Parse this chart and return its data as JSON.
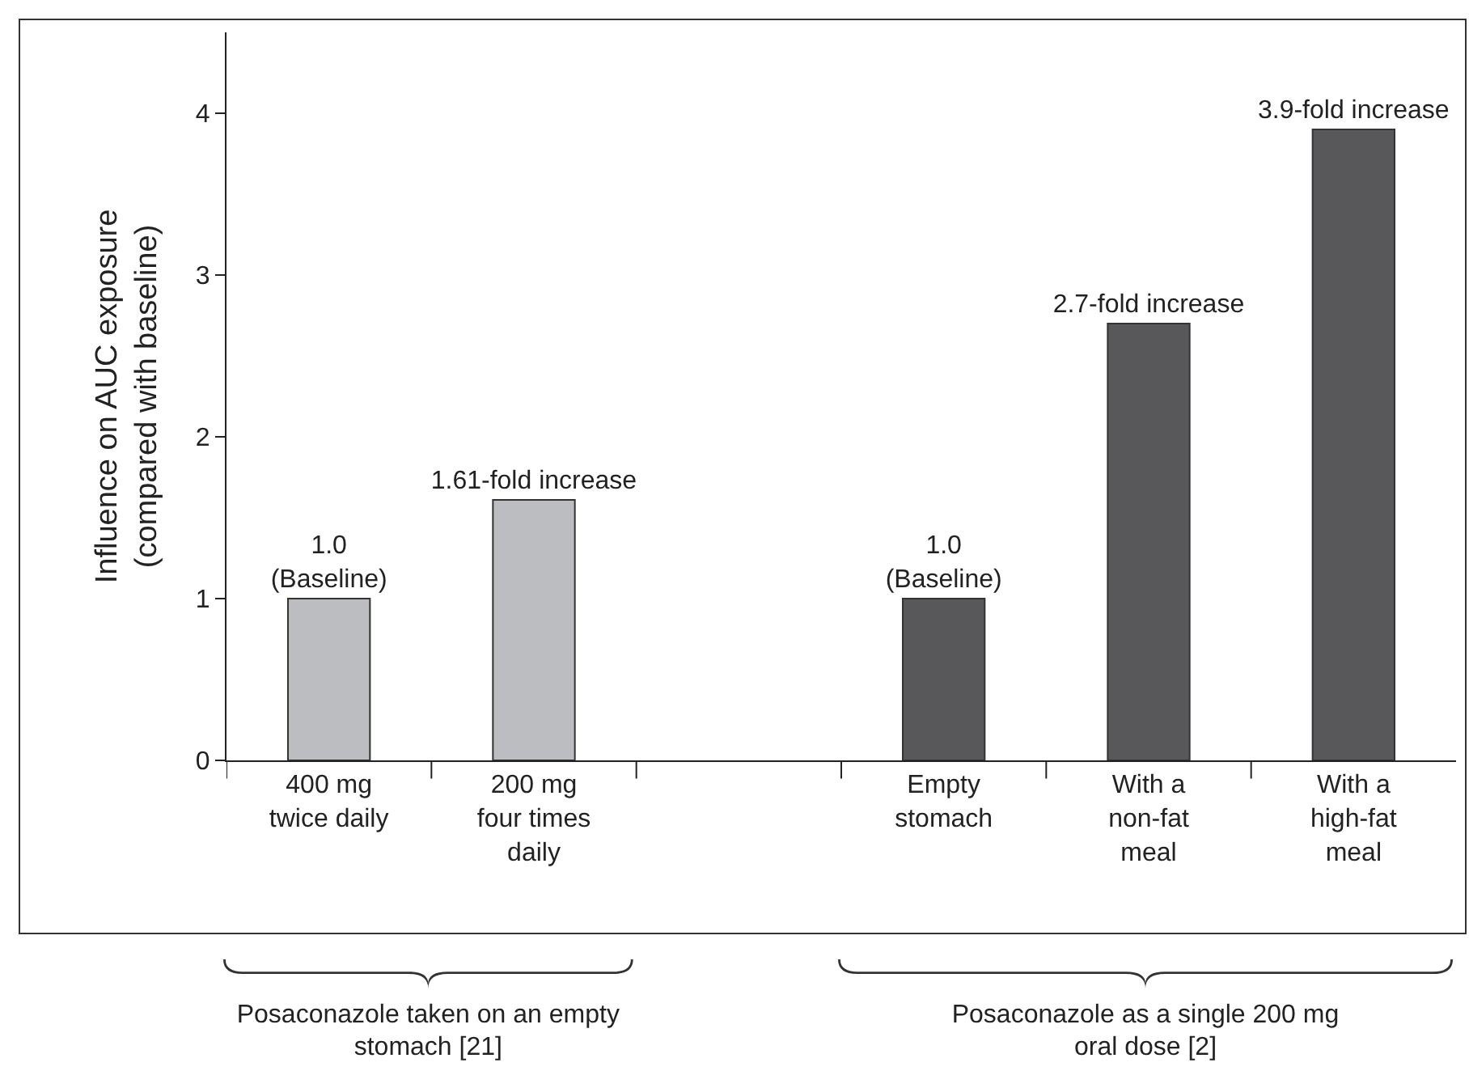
{
  "chart_data": {
    "type": "bar",
    "ylabel": "Influence on AUC exposure\n(compared with baseline)",
    "categories": [
      "400 mg\ntwice daily",
      "200 mg\nfour times\ndaily",
      null,
      "Empty\nstomach",
      "With a\nnon-fat\nmeal",
      "With a\nhigh-fat\nmeal"
    ],
    "values": [
      1.0,
      1.61,
      null,
      1.0,
      2.7,
      3.9
    ],
    "colors": [
      "#bcbdc1",
      "#bcbdc1",
      "#bcbdc1",
      "#58585a",
      "#58585a",
      "#58585a"
    ],
    "value_labels": [
      "1.0\n(Baseline)",
      "1.61-fold increase",
      null,
      "1.0\n(Baseline)",
      "2.7-fold increase",
      "3.9-fold increase"
    ],
    "ylim": [
      0,
      4.5
    ],
    "yticks": [
      0,
      1,
      2,
      3,
      4
    ],
    "grid": false,
    "annotations": [
      "Posaconazole taken on an empty stomach [21]",
      "Posaconazole as a single 200 mg oral dose [2]"
    ]
  }
}
